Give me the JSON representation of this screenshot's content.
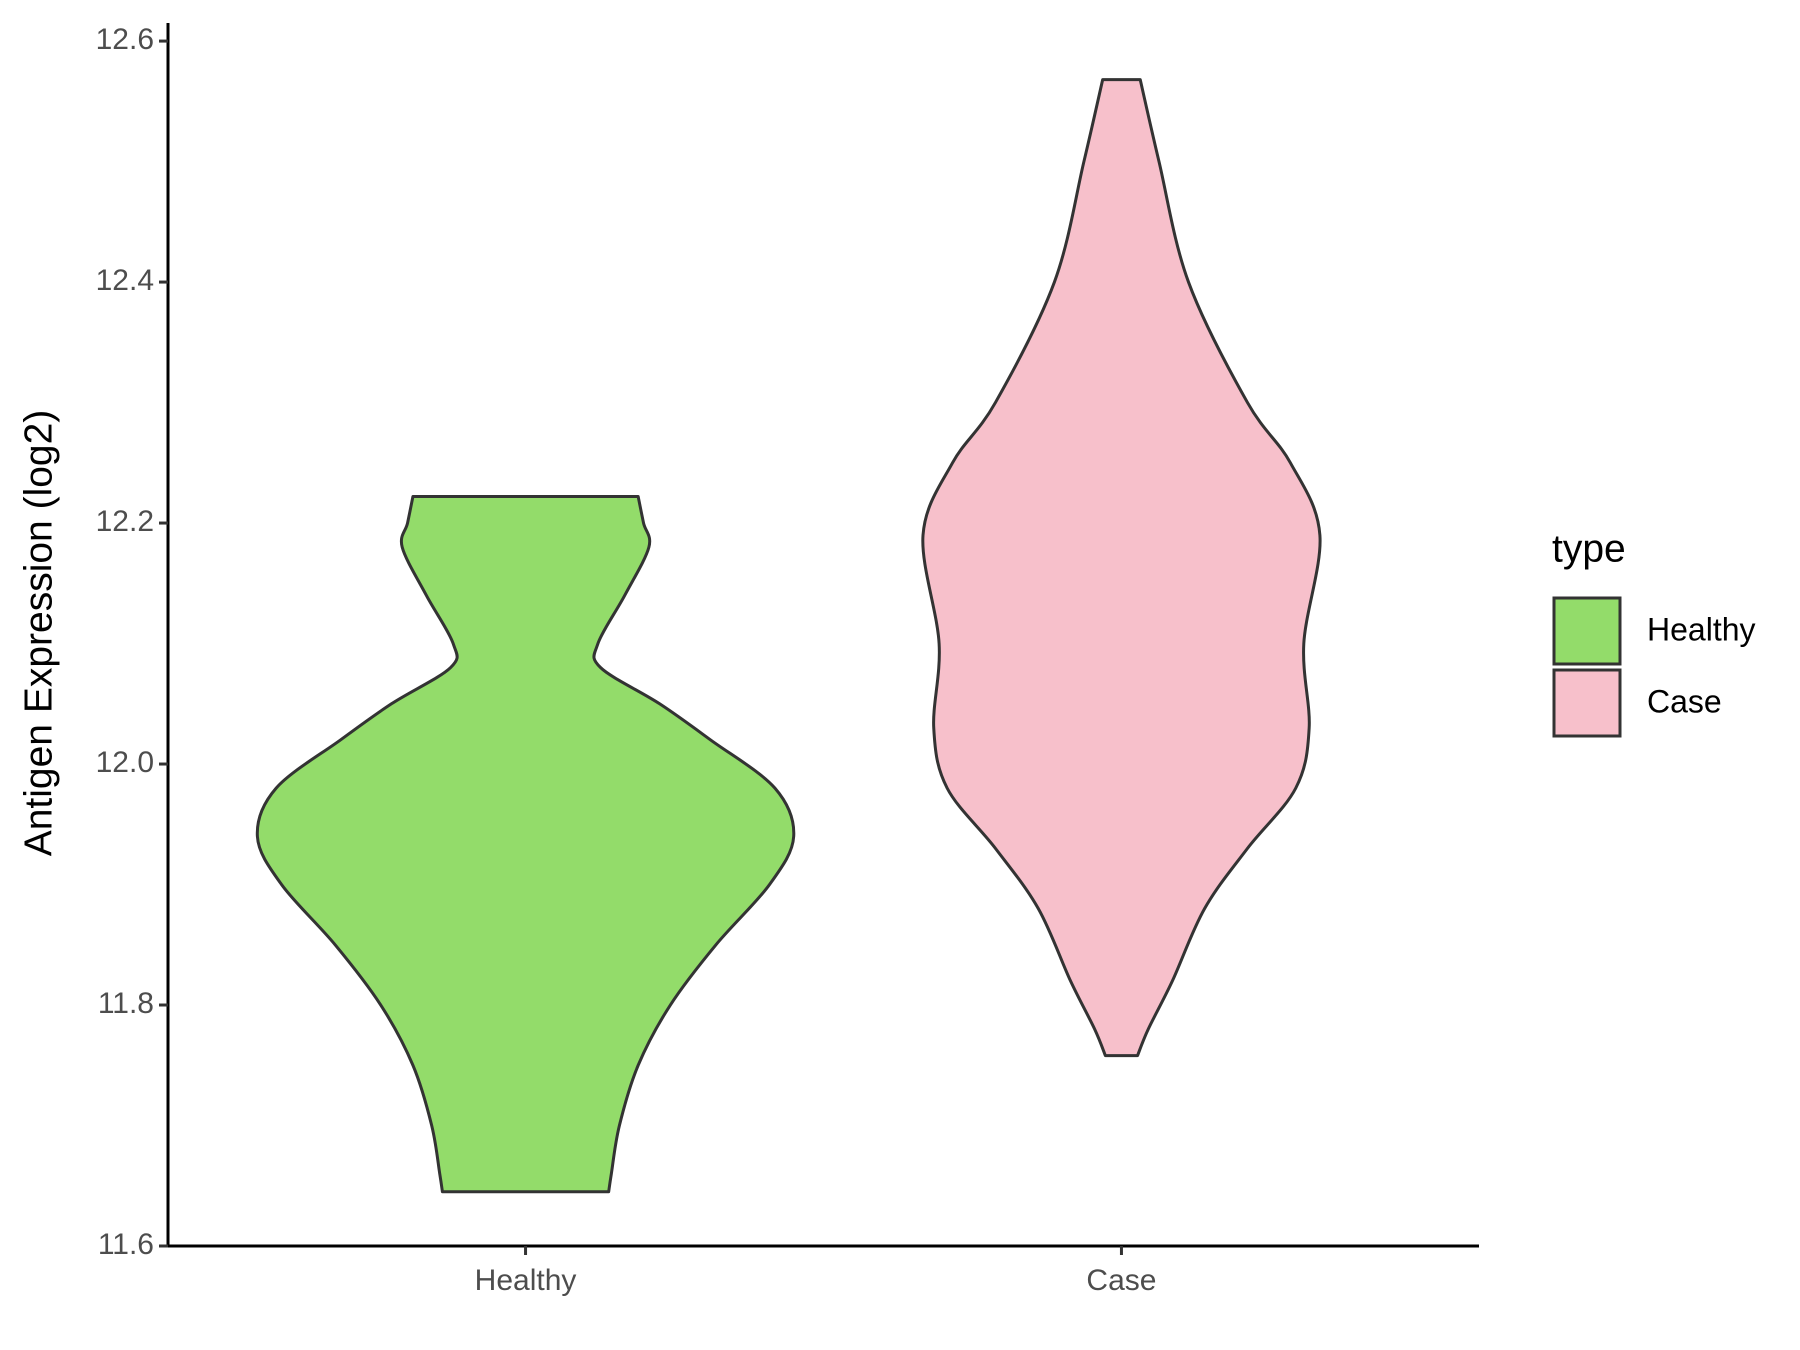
{
  "chart_data": {
    "type": "violin",
    "y_label": "Antigen Expression (log2)",
    "legend_title": "type",
    "categories": [
      "Healthy",
      "Case"
    ],
    "ylim": [
      11.6,
      12.615
    ],
    "yticks": [
      11.6,
      11.8,
      {
        "value": 12,
        "label": "12.0"
      },
      12.2,
      12.4,
      12.6
    ],
    "series": [
      {
        "name": "Healthy",
        "color": "#93dc6a",
        "y": [
          11.645,
          11.66,
          11.7,
          11.75,
          11.8,
          11.85,
          11.9,
          11.94,
          11.98,
          12.02,
          12.05,
          12.08,
          12.1,
          12.14,
          12.18,
          12.2,
          12.222
        ],
        "density": [
          0.31,
          0.32,
          0.35,
          0.42,
          0.54,
          0.71,
          0.91,
          1,
          0.93,
          0.69,
          0.5,
          0.28,
          0.27,
          0.37,
          0.46,
          0.44,
          0.42
        ]
      },
      {
        "name": "Case",
        "color": "#f7c0cb",
        "y": [
          11.758,
          11.78,
          11.82,
          11.88,
          11.93,
          11.98,
          12.03,
          12.1,
          12.19,
          12.25,
          12.3,
          12.4,
          12.5,
          12.568
        ],
        "density": [
          0.06,
          0.1,
          0.19,
          0.31,
          0.47,
          0.65,
          0.7,
          0.68,
          0.74,
          0.63,
          0.47,
          0.25,
          0.14,
          0.07
        ]
      }
    ]
  }
}
